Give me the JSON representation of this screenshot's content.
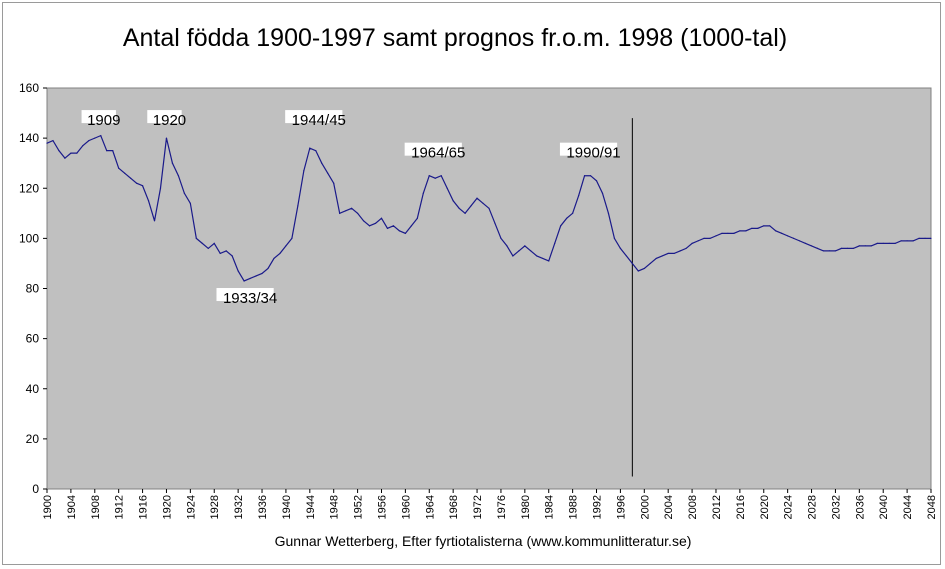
{
  "chart_data": {
    "type": "line",
    "title": "Antal födda 1900-1997 samt prognos fr.o.m. 1998 (1000-tal)",
    "xlabel": "Gunnar Wetterberg, Efter fyrtiotalisterna (www.kommunlitteratur.se)",
    "ylabel": "",
    "xlim": [
      1900,
      2048
    ],
    "ylim": [
      0,
      160
    ],
    "y_ticks": [
      "0",
      "20",
      "40",
      "60",
      "80",
      "100",
      "120",
      "140",
      "160"
    ],
    "x_ticks": [
      "1900",
      "1904",
      "1908",
      "1912",
      "1916",
      "1920",
      "1924",
      "1928",
      "1932",
      "1936",
      "1940",
      "1944",
      "1948",
      "1952",
      "1956",
      "1960",
      "1964",
      "1968",
      "1972",
      "1976",
      "1980",
      "1984",
      "1988",
      "1992",
      "1996",
      "2000",
      "2004",
      "2008",
      "2012",
      "2016",
      "2020",
      "2024",
      "2028",
      "2032",
      "2036",
      "2040",
      "2044",
      "2048"
    ],
    "grid": false,
    "background": "#c0c0c0",
    "line_color": "#1a1a8a",
    "forecast_start": 1998,
    "series": [
      {
        "name": "",
        "x": [
          1900,
          1901,
          1902,
          1903,
          1904,
          1905,
          1906,
          1907,
          1908,
          1909,
          1910,
          1911,
          1912,
          1913,
          1914,
          1915,
          1916,
          1917,
          1918,
          1919,
          1920,
          1921,
          1922,
          1923,
          1924,
          1925,
          1926,
          1927,
          1928,
          1929,
          1930,
          1931,
          1932,
          1933,
          1934,
          1935,
          1936,
          1937,
          1938,
          1939,
          1940,
          1941,
          1942,
          1943,
          1944,
          1945,
          1946,
          1947,
          1948,
          1949,
          1950,
          1951,
          1952,
          1953,
          1954,
          1955,
          1956,
          1957,
          1958,
          1959,
          1960,
          1961,
          1962,
          1963,
          1964,
          1965,
          1966,
          1967,
          1968,
          1969,
          1970,
          1971,
          1972,
          1973,
          1974,
          1975,
          1976,
          1977,
          1978,
          1979,
          1980,
          1981,
          1982,
          1983,
          1984,
          1985,
          1986,
          1987,
          1988,
          1989,
          1990,
          1991,
          1992,
          1993,
          1994,
          1995,
          1996,
          1997,
          1998,
          1999,
          2000,
          2001,
          2002,
          2003,
          2004,
          2005,
          2006,
          2007,
          2008,
          2009,
          2010,
          2011,
          2012,
          2013,
          2014,
          2015,
          2016,
          2017,
          2018,
          2019,
          2020,
          2021,
          2022,
          2023,
          2024,
          2025,
          2026,
          2027,
          2028,
          2029,
          2030,
          2031,
          2032,
          2033,
          2034,
          2035,
          2036,
          2037,
          2038,
          2039,
          2040,
          2041,
          2042,
          2043,
          2044,
          2045,
          2046,
          2047,
          2048
        ],
        "values": [
          138,
          139,
          135,
          132,
          134,
          134,
          137,
          139,
          140,
          141,
          135,
          135,
          128,
          126,
          124,
          122,
          121,
          115,
          107,
          120,
          140,
          130,
          125,
          118,
          114,
          100,
          98,
          96,
          98,
          94,
          95,
          93,
          87,
          83,
          84,
          85,
          86,
          88,
          92,
          94,
          97,
          100,
          113,
          127,
          136,
          135,
          130,
          126,
          122,
          110,
          111,
          112,
          110,
          107,
          105,
          106,
          108,
          104,
          105,
          103,
          102,
          105,
          108,
          118,
          125,
          124,
          125,
          120,
          115,
          112,
          110,
          113,
          116,
          114,
          112,
          106,
          100,
          97,
          93,
          95,
          97,
          95,
          93,
          92,
          91,
          98,
          105,
          108,
          110,
          117,
          125,
          125,
          123,
          118,
          110,
          100,
          96,
          93,
          90,
          87,
          88,
          90,
          92,
          93,
          94,
          94,
          95,
          96,
          98,
          99,
          100,
          100,
          101,
          102,
          102,
          102,
          103,
          103,
          104,
          104,
          105,
          105,
          103,
          102,
          101,
          100,
          99,
          98,
          97,
          96,
          95,
          95,
          95,
          96,
          96,
          96,
          97,
          97,
          97,
          98,
          98,
          98,
          98,
          99,
          99,
          99,
          100,
          100,
          100
        ]
      }
    ],
    "annotations": [
      {
        "text": "1909",
        "x": 1909,
        "y": 146
      },
      {
        "text": "1920",
        "x": 1920,
        "y": 146
      },
      {
        "text": "1933/34",
        "x": 1933.5,
        "y": 75
      },
      {
        "text": "1944/45",
        "x": 1945,
        "y": 146
      },
      {
        "text": "1964/65",
        "x": 1965,
        "y": 133
      },
      {
        "text": "1990/91",
        "x": 1991,
        "y": 133
      }
    ]
  }
}
